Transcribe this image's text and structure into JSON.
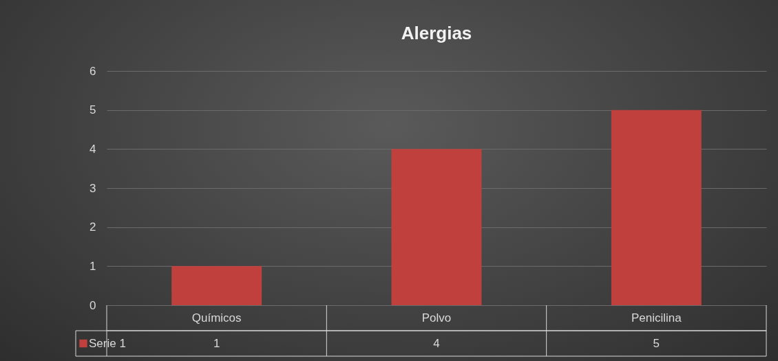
{
  "chart_data": {
    "type": "bar",
    "title": "Alergias",
    "categories": [
      "Químicos",
      "Polvo",
      "Penicilina"
    ],
    "series": [
      {
        "name": "Serie 1",
        "color": "#c0403e",
        "values": [
          1,
          4,
          5
        ]
      }
    ],
    "ylim": [
      0,
      6
    ],
    "yticks": [
      0,
      1,
      2,
      3,
      4,
      5,
      6
    ],
    "grid": "y",
    "legend": "bottom",
    "data_labels": true
  }
}
